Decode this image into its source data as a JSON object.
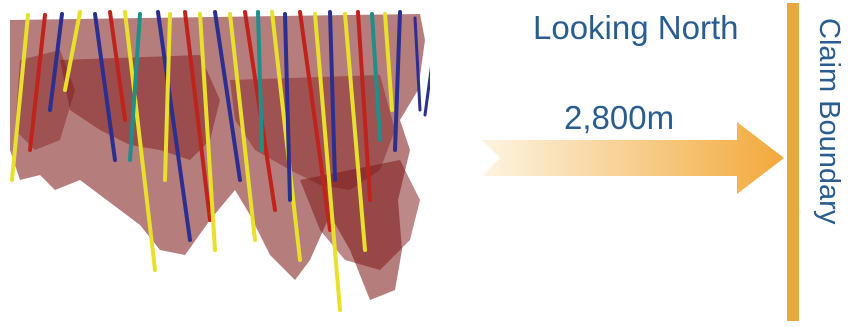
{
  "heading": "Looking North",
  "distance_label": "2,800m",
  "boundary_label": "Claim Boundary",
  "colors": {
    "text": "#2a5d8f",
    "boundary": "#e8a83a",
    "arrow_start": "#fdf4e3",
    "arrow_end": "#f2a93b",
    "shell": "#7a1212",
    "trace_blue": "#2b2f8f",
    "trace_yellow": "#e8e02c",
    "trace_red": "#c0231b",
    "trace_teal": "#1f8f8a"
  },
  "icons": {
    "direction_arrow": "right-arrow-icon"
  }
}
